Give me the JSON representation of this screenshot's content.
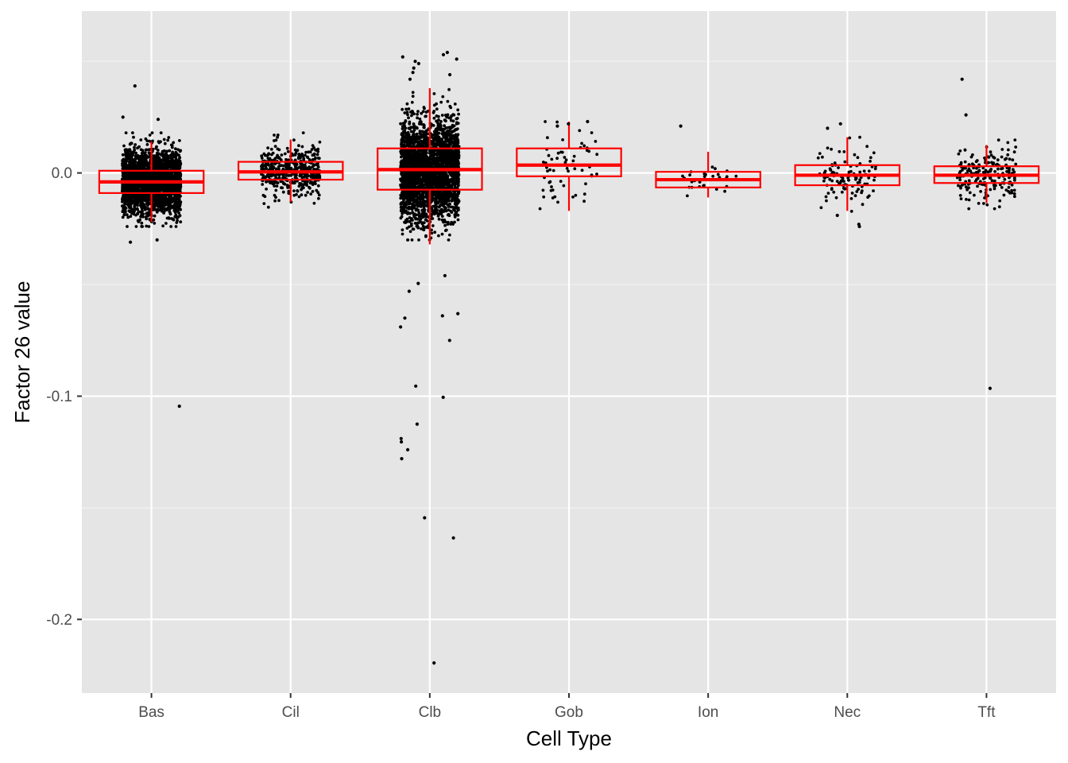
{
  "chart_data": {
    "type": "boxplot",
    "xlabel": "Cell Type",
    "ylabel": "Factor 26 value",
    "ylim": [
      -0.233,
      0.0725
    ],
    "y_ticks": [
      0.0,
      -0.1,
      -0.2
    ],
    "y_tick_labels": [
      "0.0",
      "-0.1",
      "-0.2"
    ],
    "grid": true,
    "categories": [
      "Bas",
      "Cil",
      "Clb",
      "Gob",
      "Ion",
      "Nec",
      "Tft"
    ],
    "boxes": [
      {
        "category": "Bas",
        "whisker_low": -0.022,
        "q1": -0.009,
        "median": -0.004,
        "q3": 0.001,
        "whisker_high": 0.014
      },
      {
        "category": "Cil",
        "whisker_low": -0.013,
        "q1": -0.003,
        "median": 0.0005,
        "q3": 0.005,
        "whisker_high": 0.015
      },
      {
        "category": "Clb",
        "whisker_low": -0.032,
        "q1": -0.0075,
        "median": 0.0015,
        "q3": 0.011,
        "whisker_high": 0.038
      },
      {
        "category": "Gob",
        "whisker_low": -0.017,
        "q1": -0.0015,
        "median": 0.0035,
        "q3": 0.011,
        "whisker_high": 0.023
      },
      {
        "category": "Ion",
        "whisker_low": -0.011,
        "q1": -0.0065,
        "median": -0.003,
        "q3": 0.0005,
        "whisker_high": 0.0095
      },
      {
        "category": "Nec",
        "whisker_low": -0.017,
        "q1": -0.0055,
        "median": -0.001,
        "q3": 0.0035,
        "whisker_high": 0.016
      },
      {
        "category": "Tft",
        "whisker_low": -0.0135,
        "q1": -0.0045,
        "median": -0.001,
        "q3": 0.003,
        "whisker_high": 0.0125
      }
    ],
    "box_color": "#ff0000",
    "point_color": "#000000",
    "outliers": [
      {
        "category": "Bas",
        "values": [
          -0.1045,
          0.039,
          -0.031,
          -0.03,
          0.024,
          0.025
        ]
      },
      {
        "category": "Clb",
        "values": [
          -0.2195,
          -0.1635,
          -0.1545,
          -0.128,
          -0.124,
          -0.1205,
          -0.119,
          -0.1125,
          -0.1005,
          -0.0955,
          -0.075,
          -0.069,
          -0.065,
          -0.064,
          -0.063,
          -0.053,
          -0.0495,
          -0.046,
          0.054,
          0.053,
          0.052,
          0.051,
          0.05,
          0.049,
          0.047,
          0.045,
          0.044,
          0.042
        ]
      },
      {
        "category": "Gob",
        "values": [
          0.023,
          0.022,
          0.021
        ]
      },
      {
        "category": "Ion",
        "values": [
          0.021
        ]
      },
      {
        "category": "Nec",
        "values": [
          -0.024,
          -0.023,
          -0.019,
          0.022,
          0.02
        ]
      },
      {
        "category": "Tft",
        "values": [
          -0.0965,
          0.042,
          0.026
        ]
      }
    ],
    "jitter_groups": [
      {
        "category": "Bas",
        "n_points": 2600,
        "mean": -0.004,
        "sd": 0.007,
        "clip": [
          -0.024,
          0.018
        ]
      },
      {
        "category": "Cil",
        "n_points": 450,
        "mean": 0.001,
        "sd": 0.0055,
        "clip": [
          -0.02,
          0.018
        ]
      },
      {
        "category": "Clb",
        "n_points": 2800,
        "mean": 0.001,
        "sd": 0.011,
        "clip": [
          -0.03,
          0.04
        ]
      },
      {
        "category": "Gob",
        "n_points": 60,
        "mean": 0.004,
        "sd": 0.009,
        "clip": [
          -0.016,
          0.023
        ]
      },
      {
        "category": "Ion",
        "n_points": 28,
        "mean": -0.003,
        "sd": 0.0055,
        "clip": [
          -0.011,
          0.01
        ]
      },
      {
        "category": "Nec",
        "n_points": 110,
        "mean": -0.001,
        "sd": 0.007,
        "clip": [
          -0.018,
          0.016
        ]
      },
      {
        "category": "Tft",
        "n_points": 200,
        "mean": -0.001,
        "sd": 0.006,
        "clip": [
          -0.016,
          0.015
        ]
      }
    ]
  }
}
